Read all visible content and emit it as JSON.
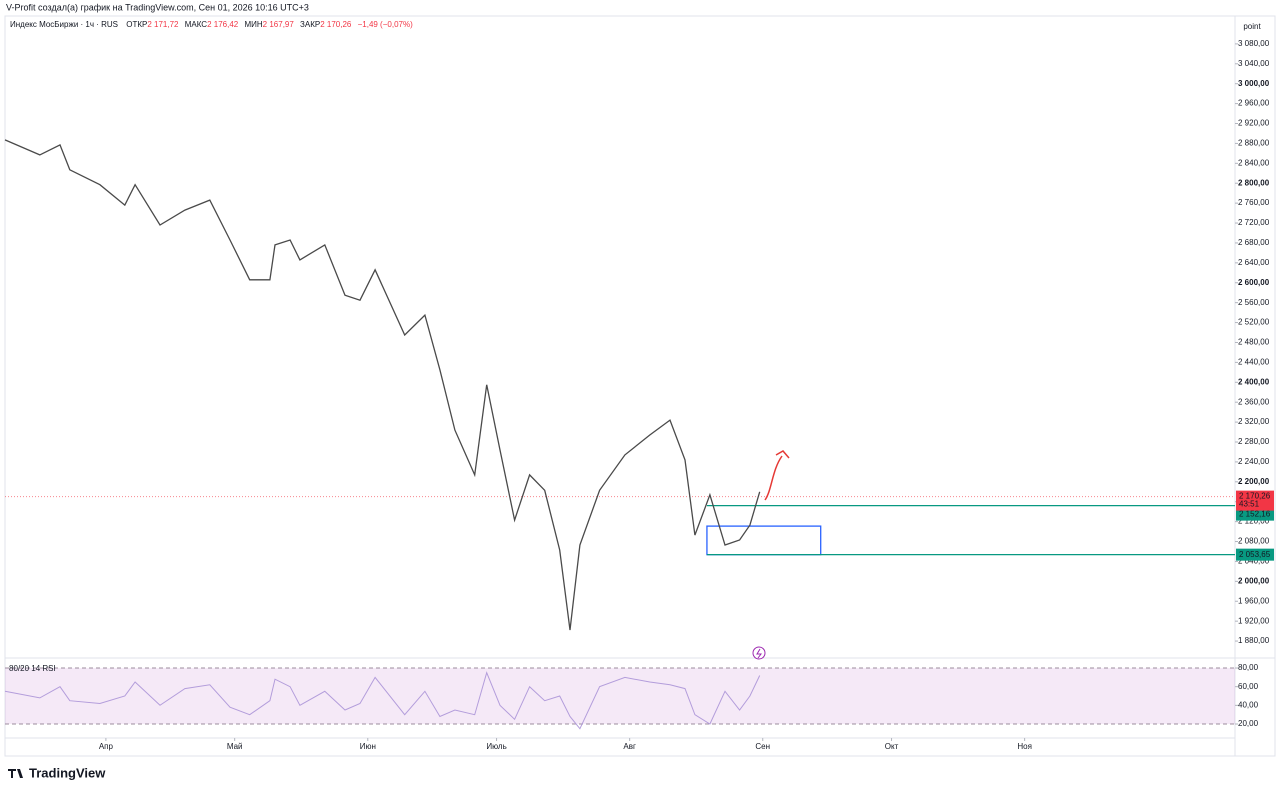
{
  "header": {
    "credit": "V-Profit создал(а) график на TradingView.com, Сен 01, 2026 10:16 UTC+3",
    "axis_unit": "point",
    "logo": "TradingView"
  },
  "legend": {
    "name": "Индекс МосБиржи · 1ч · RUS",
    "open_label": "ОТКР",
    "open": "2 171,72",
    "high_label": "МАКС",
    "high": "2 176,42",
    "low_label": "МИН",
    "low": "2 167,97",
    "close_label": "ЗАКР",
    "close": "2 170,26",
    "change": "−1,49 (−0,07%)"
  },
  "chart_data": [
    {
      "type": "line",
      "x": [
        7.5,
        15.6,
        20.3,
        22.6,
        29.6,
        35.4,
        37.8,
        43.6,
        49.4,
        55.2,
        59.9,
        64.5,
        69.2,
        70.4,
        73.9,
        76.2,
        82.0,
        86.7,
        90.2,
        93.7,
        100.6,
        105.3,
        108.8,
        112.3,
        116.9,
        119.7,
        122.8,
        126.2,
        129.7,
        133.2,
        136.7,
        139.1,
        141.4,
        146.0,
        151.9,
        157.7,
        162.4,
        165.9,
        168.2,
        171.7,
        175.2,
        178.6,
        181.0,
        183.3
      ],
      "series": [
        {
          "name": "Индекс МосБиржи",
          "color": "#4a4a4a",
          "values": [
            2887,
            2857,
            2877,
            2827,
            2797,
            2756,
            2797,
            2716,
            2746,
            2766,
            2686,
            2606,
            2606,
            2676,
            2686,
            2646,
            2676,
            2575,
            2565,
            2626,
            2495,
            2535,
            2425,
            2304,
            2214,
            2395,
            2264,
            2123,
            2214,
            2183,
            2063,
            1902,
            2073,
            2183,
            2254,
            2294,
            2324,
            2244,
            2093,
            2174,
            2073,
            2083,
            2113,
            2180
          ]
        }
      ],
      "xlim": [
        7.5,
        294
      ],
      "xticks": [
        {
          "value": 31,
          "label": "Апр"
        },
        {
          "value": 61,
          "label": "Май"
        },
        {
          "value": 92,
          "label": "Июн"
        },
        {
          "value": 122,
          "label": "Июль"
        },
        {
          "value": 153,
          "label": "Авг"
        },
        {
          "value": 184,
          "label": "Сен"
        },
        {
          "value": 214,
          "label": "Окт"
        },
        {
          "value": 245,
          "label": "Ноя"
        }
      ],
      "ylim": [
        1852,
        3128
      ],
      "yticks": [
        {
          "value": 1880,
          "label": "1 880,00"
        },
        {
          "value": 1920,
          "label": "1 920,00"
        },
        {
          "value": 1960,
          "label": "1 960,00"
        },
        {
          "value": 2000,
          "label": "2 000,00"
        },
        {
          "value": 2040,
          "label": "2 040,00"
        },
        {
          "value": 2080,
          "label": "2 080,00"
        },
        {
          "value": 2120,
          "label": "2 120,00"
        },
        {
          "value": 2160,
          "label": "2 160,00"
        },
        {
          "value": 2200,
          "label": "2 200,00"
        },
        {
          "value": 2240,
          "label": "2 240,00"
        },
        {
          "value": 2280,
          "label": "2 280,00"
        },
        {
          "value": 2320,
          "label": "2 320,00"
        },
        {
          "value": 2360,
          "label": "2 360,00"
        },
        {
          "value": 2400,
          "label": "2 400,00"
        },
        {
          "value": 2440,
          "label": "2 440,00"
        },
        {
          "value": 2480,
          "label": "2 480,00"
        },
        {
          "value": 2520,
          "label": "2 520,00"
        },
        {
          "value": 2560,
          "label": "2 560,00"
        },
        {
          "value": 2600,
          "label": "2 600,00"
        },
        {
          "value": 2640,
          "label": "2 640,00"
        },
        {
          "value": 2680,
          "label": "2 680,00"
        },
        {
          "value": 2720,
          "label": "2 720,00"
        },
        {
          "value": 2760,
          "label": "2 760,00"
        },
        {
          "value": 2800,
          "label": "2 800,00"
        },
        {
          "value": 2840,
          "label": "2 840,00"
        },
        {
          "value": 2880,
          "label": "2 880,00"
        },
        {
          "value": 2920,
          "label": "2 920,00"
        },
        {
          "value": 2960,
          "label": "2 960,00"
        },
        {
          "value": 3000,
          "label": "3 000,00"
        },
        {
          "value": 3040,
          "label": "3 040,00"
        },
        {
          "value": 3080,
          "label": "3 080,00"
        }
      ],
      "last_price": {
        "value": 2170.26,
        "label": "2 170,26",
        "countdown": "43:51",
        "color": "#f23645"
      },
      "levels": [
        {
          "value": 2152.16,
          "label": "2 152,16",
          "color": "#089981"
        },
        {
          "value": 2053.65,
          "label": "2 053,65",
          "color": "#089981"
        }
      ],
      "zone": {
        "x": [
          171,
          197.5
        ],
        "y": [
          2053.65,
          2111
        ],
        "color": "#2962ff"
      }
    },
    {
      "type": "line",
      "title": "80/20 14 RSI",
      "x": [
        7.5,
        15.6,
        20.3,
        22.6,
        29.6,
        35.4,
        37.8,
        43.6,
        49.4,
        55.2,
        59.9,
        64.5,
        69.2,
        70.4,
        73.9,
        76.2,
        82.0,
        86.7,
        90.2,
        93.7,
        100.6,
        105.3,
        108.8,
        112.3,
        116.9,
        119.7,
        122.8,
        126.2,
        129.7,
        133.2,
        136.7,
        139.1,
        141.4,
        146.0,
        151.9,
        157.7,
        162.4,
        165.9,
        168.2,
        171.7,
        175.2,
        178.6,
        181.0,
        183.3
      ],
      "series": [
        {
          "name": "RSI",
          "color": "#b39ddb",
          "values": [
            55,
            48,
            60,
            45,
            42,
            50,
            65,
            40,
            58,
            62,
            38,
            30,
            45,
            68,
            60,
            40,
            55,
            35,
            42,
            70,
            30,
            55,
            28,
            35,
            30,
            75,
            40,
            25,
            60,
            45,
            50,
            28,
            15,
            60,
            70,
            65,
            62,
            58,
            30,
            20,
            55,
            35,
            50,
            72
          ]
        }
      ],
      "xlim": [
        7.5,
        294
      ],
      "ylim": [
        5,
        88.6
      ],
      "yticks": [
        {
          "value": 20,
          "label": "20,00"
        },
        {
          "value": 40,
          "label": "40,00"
        },
        {
          "value": 60,
          "label": "60,00"
        },
        {
          "value": 80,
          "label": "80,00"
        }
      ],
      "band": [
        20,
        80
      ]
    }
  ]
}
